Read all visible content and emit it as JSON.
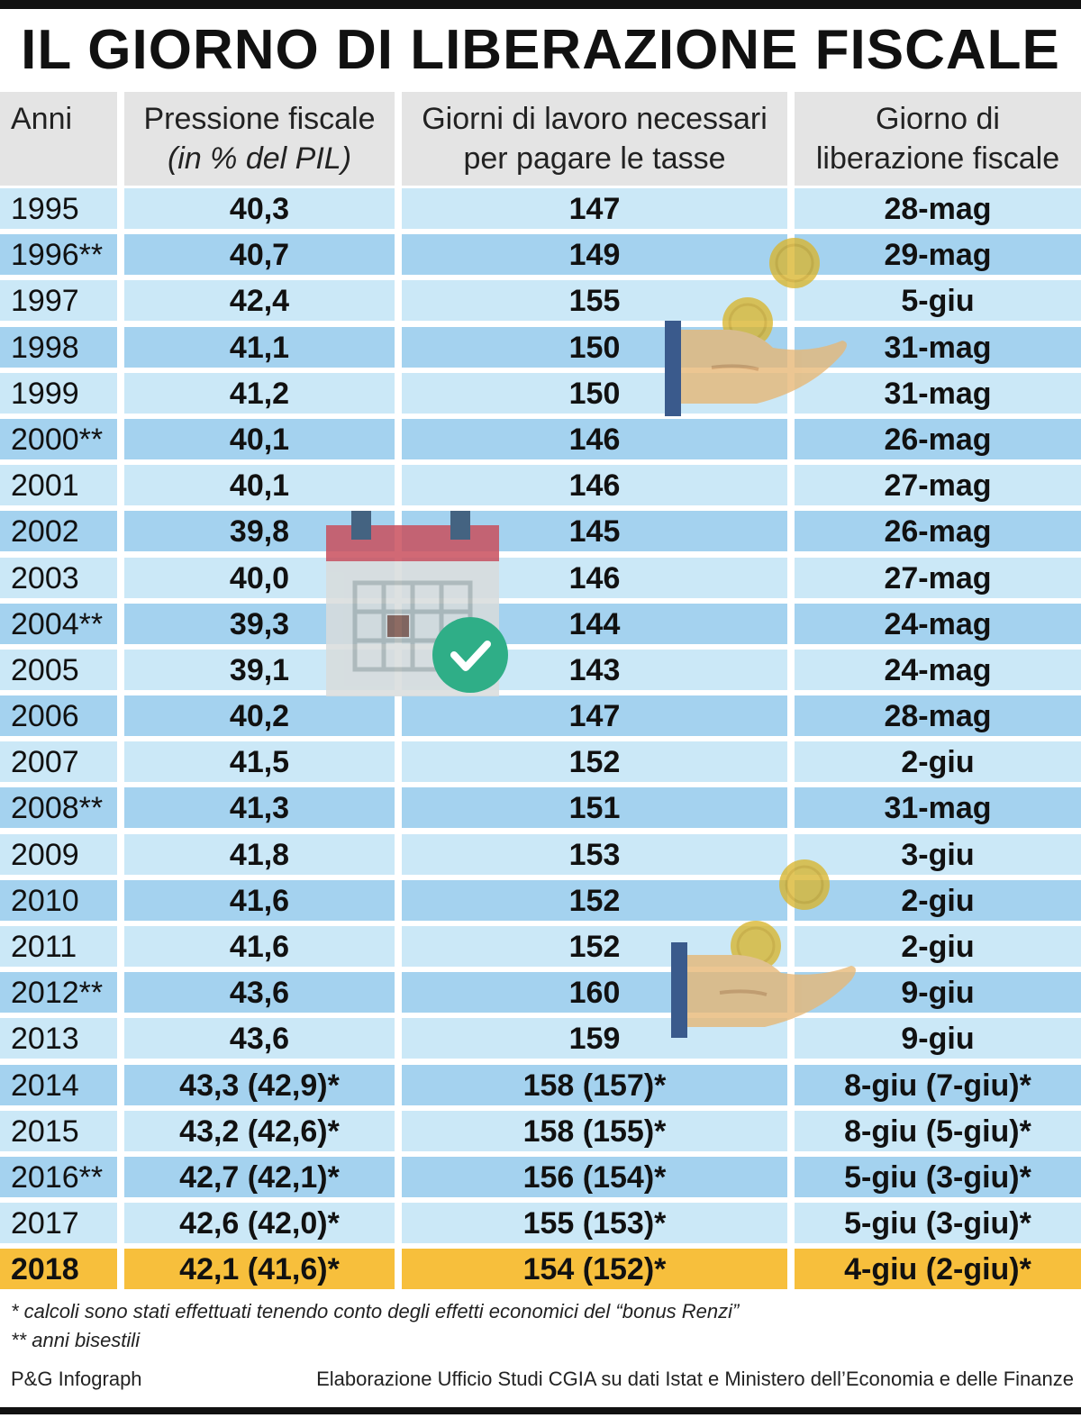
{
  "title": "IL GIORNO DI LIBERAZIONE FISCALE",
  "headers": {
    "anni": "Anni",
    "pressione_line1": "Pressione fiscale",
    "pressione_line2": "(in % del PIL)",
    "giorni_line1": "Giorni di lavoro necessari",
    "giorni_line2": "per pagare le tasse",
    "liberazione_line1": "Giorno di",
    "liberazione_line2": "liberazione fiscale"
  },
  "rows": [
    {
      "anno": "1995",
      "pressione": "40,3",
      "giorni": "147",
      "giorno": "28-mag"
    },
    {
      "anno": "1996**",
      "pressione": "40,7",
      "giorni": "149",
      "giorno": "29-mag"
    },
    {
      "anno": "1997",
      "pressione": "42,4",
      "giorni": "155",
      "giorno": "5-giu"
    },
    {
      "anno": "1998",
      "pressione": "41,1",
      "giorni": "150",
      "giorno": "31-mag"
    },
    {
      "anno": "1999",
      "pressione": "41,2",
      "giorni": "150",
      "giorno": "31-mag"
    },
    {
      "anno": "2000**",
      "pressione": "40,1",
      "giorni": "146",
      "giorno": "26-mag"
    },
    {
      "anno": "2001",
      "pressione": "40,1",
      "giorni": "146",
      "giorno": "27-mag"
    },
    {
      "anno": "2002",
      "pressione": "39,8",
      "giorni": "145",
      "giorno": "26-mag"
    },
    {
      "anno": "2003",
      "pressione": "40,0",
      "giorni": "146",
      "giorno": "27-mag"
    },
    {
      "anno": "2004**",
      "pressione": "39,3",
      "giorni": "144",
      "giorno": "24-mag"
    },
    {
      "anno": "2005",
      "pressione": "39,1",
      "giorni": "143",
      "giorno": "24-mag"
    },
    {
      "anno": "2006",
      "pressione": "40,2",
      "giorni": "147",
      "giorno": "28-mag"
    },
    {
      "anno": "2007",
      "pressione": "41,5",
      "giorni": "152",
      "giorno": "2-giu"
    },
    {
      "anno": "2008**",
      "pressione": "41,3",
      "giorni": "151",
      "giorno": "31-mag"
    },
    {
      "anno": "2009",
      "pressione": "41,8",
      "giorni": "153",
      "giorno": "3-giu"
    },
    {
      "anno": "2010",
      "pressione": "41,6",
      "giorni": "152",
      "giorno": "2-giu"
    },
    {
      "anno": "2011",
      "pressione": "41,6",
      "giorni": "152",
      "giorno": "2-giu"
    },
    {
      "anno": "2012**",
      "pressione": "43,6",
      "giorni": "160",
      "giorno": "9-giu"
    },
    {
      "anno": "2013",
      "pressione": "43,6",
      "giorni": "159",
      "giorno": "9-giu"
    },
    {
      "anno": "2014",
      "pressione": "43,3 (42,9)*",
      "giorni": "158 (157)*",
      "giorno": "8-giu (7-giu)*"
    },
    {
      "anno": "2015",
      "pressione": "43,2 (42,6)*",
      "giorni": "158 (155)*",
      "giorno": "8-giu (5-giu)*"
    },
    {
      "anno": "2016**",
      "pressione": "42,7 (42,1)*",
      "giorni": "156 (154)*",
      "giorno": "5-giu (3-giu)*"
    },
    {
      "anno": "2017",
      "pressione": "42,6 (42,0)*",
      "giorni": "155 (153)*",
      "giorno": "5-giu (3-giu)*"
    },
    {
      "anno": "2018",
      "pressione": "42,1 (41,6)*",
      "giorni": "154 (152)*",
      "giorno": "4-giu (2-giu)*"
    }
  ],
  "highlight_row": "2018",
  "footnotes": {
    "bonus": "* calcoli sono stati effettuati tenendo conto degli effetti economici del “bonus Renzi”",
    "bisestili": "** anni bisestili"
  },
  "credits": {
    "agency": "P&G Infograph",
    "source": "Elaborazione Ufficio Studi CGIA su dati Istat e Ministero dell’Economia e delle Finanze"
  },
  "colors": {
    "header_bg": "#e4e4e4",
    "row_light": "#cbe8f7",
    "row_dark": "#a4d2ef",
    "highlight": "#f7bf3c",
    "coin": "#d9b52e",
    "hand": "#e7b774",
    "sleeve": "#3a5a8c",
    "calendar_top": "#c9505e",
    "check": "#2fae87"
  },
  "icons": [
    "hand-with-coins-icon",
    "calendar-check-icon"
  ]
}
